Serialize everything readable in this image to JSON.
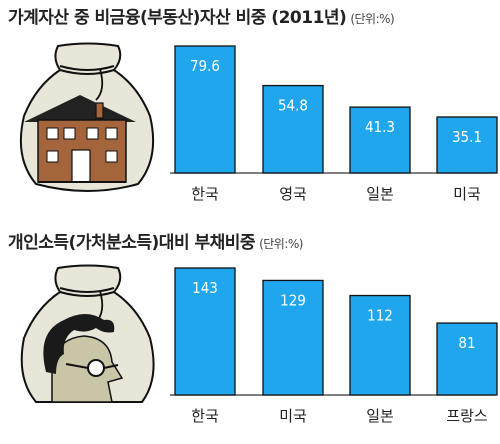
{
  "colors": {
    "bar": "#20a6ec",
    "bar_outline": "#111111",
    "bag": "#e8e6d8",
    "house_wall": "#a4643c"
  },
  "icons": {
    "chart1": "money-bag-with-house-illustration",
    "chart2": "money-bag-with-man-face-illustration"
  },
  "chart_data": [
    {
      "type": "bar",
      "title": "가계자산 중 비금융(부동산)자산 비중 (2011년)",
      "unit": "(단위:%)",
      "categories": [
        "한국",
        "영국",
        "일본",
        "미국"
      ],
      "values": [
        79.6,
        54.8,
        41.3,
        35.1
      ],
      "value_labels": [
        "79.6",
        "54.8",
        "41.3",
        "35.1"
      ],
      "xlabel": "",
      "ylabel": "",
      "grid": false,
      "legend": "none"
    },
    {
      "type": "bar",
      "title": "개인소득(가처분소득)대비 부채비중",
      "unit": "(단위:%)",
      "categories": [
        "한국",
        "미국",
        "일본",
        "프랑스"
      ],
      "values": [
        143,
        129,
        112,
        81
      ],
      "value_labels": [
        "143",
        "129",
        "112",
        "81"
      ],
      "xlabel": "",
      "ylabel": "",
      "grid": false,
      "legend": "none"
    }
  ]
}
